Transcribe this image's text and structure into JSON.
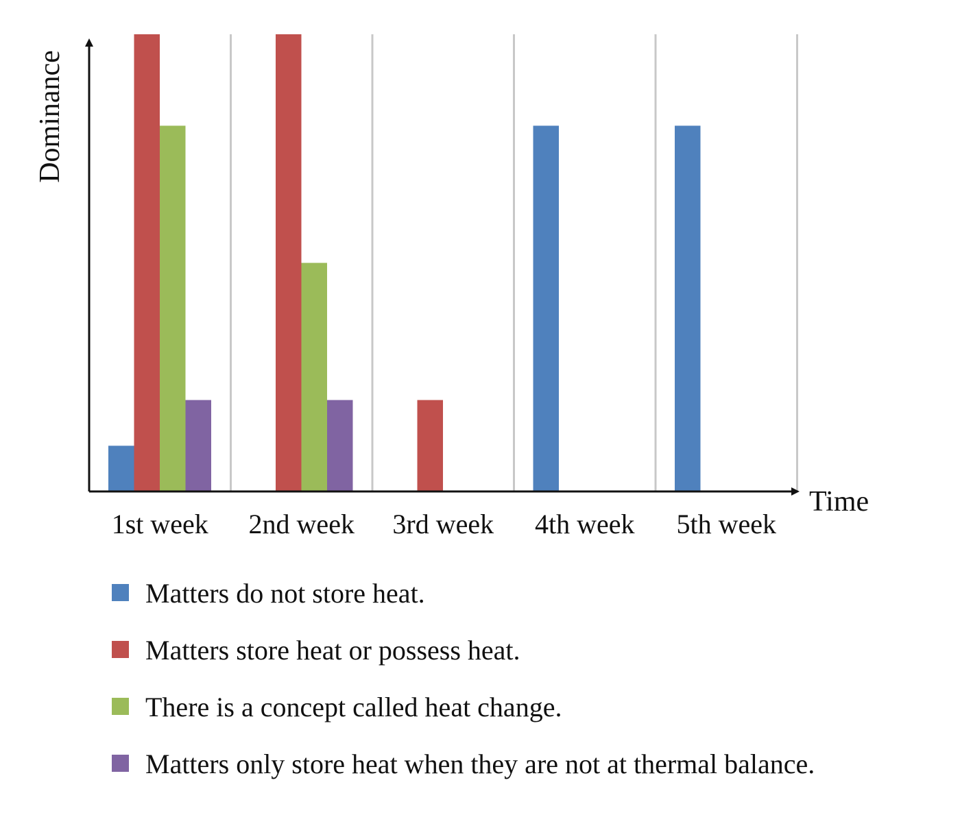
{
  "chart_data": {
    "type": "bar",
    "title": "",
    "xlabel": "Time",
    "ylabel": "Dominance",
    "categories": [
      "1st week",
      "2nd week",
      "3rd week",
      "4th week",
      "5th week"
    ],
    "ylim": [
      0,
      5
    ],
    "grid": "vertical separators between categories",
    "legend_position": "bottom",
    "series": [
      {
        "name": "Matters do not store heat.",
        "color": "#4f81bd",
        "values": [
          0.5,
          0,
          0,
          4,
          4
        ]
      },
      {
        "name": "Matters store heat or possess heat.",
        "color": "#c0504d",
        "values": [
          5,
          5,
          1,
          0,
          0
        ]
      },
      {
        "name": "There is a concept called heat change.",
        "color": "#9bbb59",
        "values": [
          4,
          2.5,
          0,
          0,
          0
        ]
      },
      {
        "name": "Matters only store heat when they are not at thermal balance.",
        "color": "#8064a2",
        "values": [
          1,
          1,
          0,
          0,
          0
        ]
      }
    ]
  }
}
